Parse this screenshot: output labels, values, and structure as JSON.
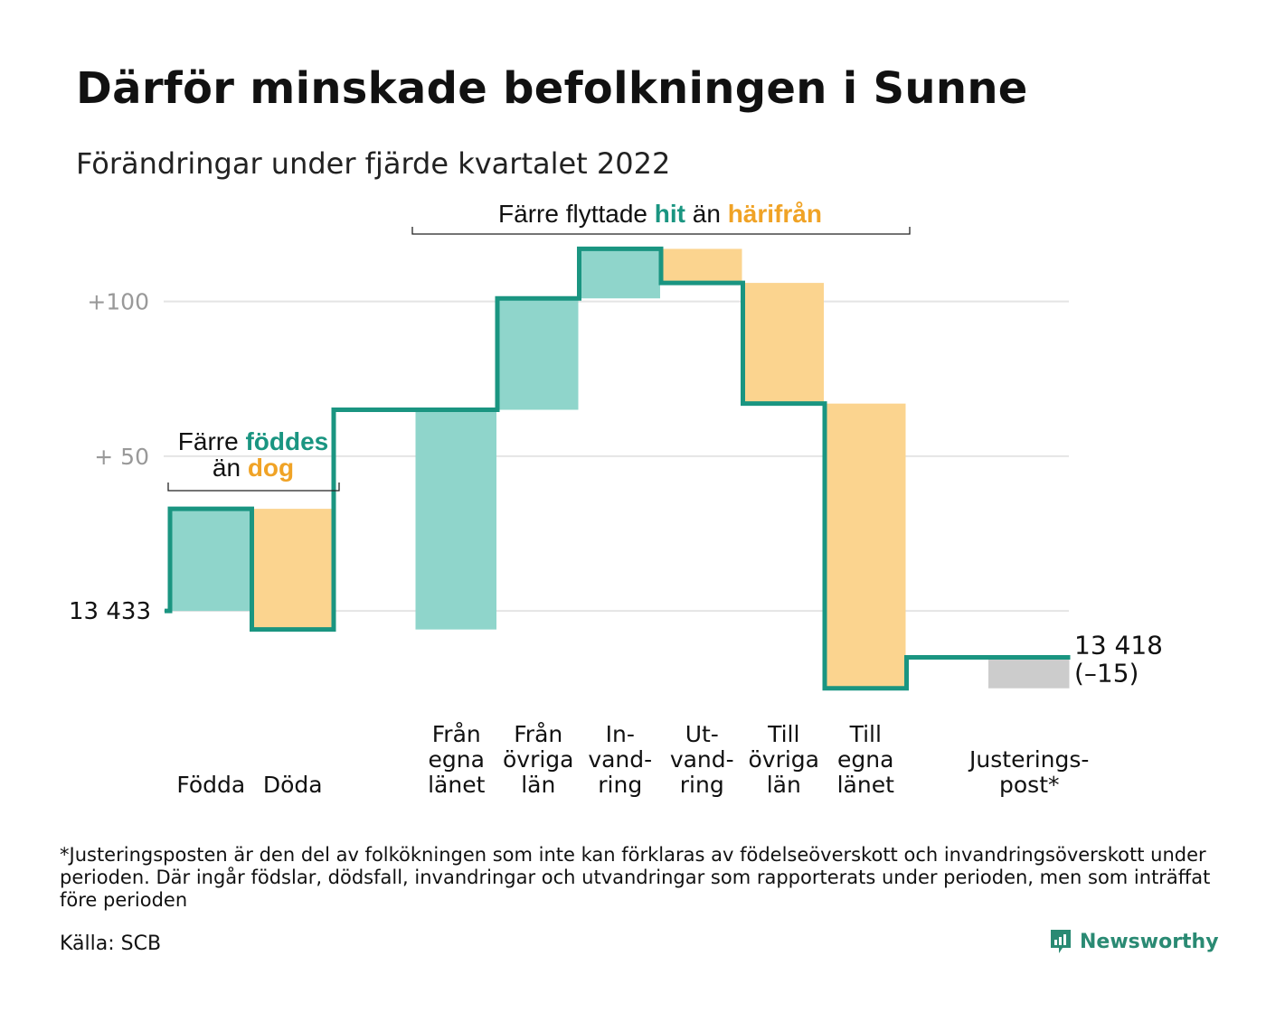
{
  "title": "Därför minskade befolkningen i Sunne",
  "subtitle": "Förändringar under fjärde kvartalet 2022",
  "footnote": "*Justeringsposten är den del av folkökningen som inte kan förklaras av födelseöverskott och invandringsöverskott under perioden. Där ingår födslar, dödsfall, invandringar och utvandringar som rapporterats under perioden, men som inträffat före perioden",
  "source": "Källa: SCB",
  "brand": "Newsworthy",
  "colors": {
    "positive": "#8fd5cb",
    "negative": "#fbd48f",
    "adjustment": "#cccccc",
    "line": "#1a9581",
    "hit": "#1a9581",
    "away": "#f0a326",
    "grid": "#e4e4e4",
    "tick": "#999999"
  },
  "annotations": {
    "births": {
      "prefix": "Färre ",
      "highlight": "föddes",
      "line2_prefix": "än ",
      "line2_highlight": "dog"
    },
    "moves": {
      "prefix": "Färre flyttade ",
      "highlight": "hit",
      "middle": " än ",
      "highlight2": "härifrån"
    }
  },
  "chart_data": {
    "type": "waterfall",
    "title": "Därför minskade befolkningen i Sunne",
    "subtitle": "Förändringar under fjärde kvartalet 2022",
    "start_value": 13433,
    "start_label": "13 433",
    "end_value": 13418,
    "end_label": "13 418",
    "change_label": "(–15)",
    "yticks": [
      {
        "value": 0,
        "label": ""
      },
      {
        "value": 50,
        "label": "+ 50"
      },
      {
        "value": 100,
        "label": "+100"
      }
    ],
    "ylim": [
      -28,
      118
    ],
    "steps": [
      {
        "label": [
          "",
          "Födda"
        ],
        "value": 33,
        "kind": "positive"
      },
      {
        "label": [
          "",
          "Döda"
        ],
        "value": -39,
        "kind": "negative"
      },
      {
        "label": [
          "Från",
          "egna",
          "länet"
        ],
        "value": 71,
        "kind": "positive"
      },
      {
        "label": [
          "Från",
          "övriga",
          "län"
        ],
        "value": 36,
        "kind": "positive"
      },
      {
        "label": [
          "In-",
          "vand-",
          "ring"
        ],
        "value": 16,
        "kind": "positive"
      },
      {
        "label": [
          "Ut-",
          "vand-",
          "ring"
        ],
        "value": -11,
        "kind": "negative"
      },
      {
        "label": [
          "Till",
          "övriga",
          "län"
        ],
        "value": -39,
        "kind": "negative"
      },
      {
        "label": [
          "Till",
          "egna",
          "länet"
        ],
        "value": -92,
        "kind": "negative"
      },
      {
        "label": [
          "Justerings-",
          "post*"
        ],
        "value": 10,
        "kind": "adjustment"
      }
    ]
  }
}
